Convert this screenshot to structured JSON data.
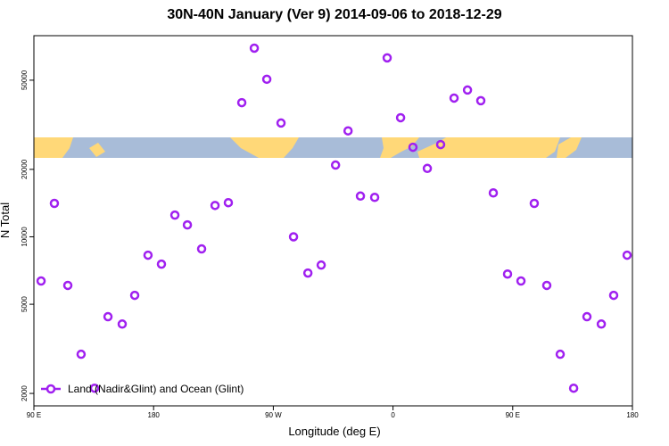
{
  "chart_data": {
    "type": "scatter",
    "title": "30N-40N January (Ver 9)   2014-09-06 to 2018-12-29",
    "x_label": "Longitude (deg E)",
    "y_label": "N Total",
    "log_y": true,
    "xlim": [
      90,
      540
    ],
    "ylim": [
      1760,
      79000
    ],
    "xticks": [
      {
        "value": 90,
        "label": "90 E"
      },
      180,
      {
        "value": 270,
        "label": "90 W"
      },
      {
        "value": 360,
        "label": "0"
      },
      {
        "value": 450,
        "label": "90 E"
      },
      {
        "value": 540,
        "label": "180"
      }
    ],
    "yticks": [
      2000,
      5000,
      10000,
      20000,
      50000
    ],
    "legend_position": "bottom-left",
    "series": [
      {
        "name": "Land (Nadir&Glint) and Ocean (Glint)",
        "color": "#a020f0",
        "x": [
          95.4,
          105.4,
          115.5,
          125.5,
          135.6,
          145.7,
          156.4,
          165.8,
          175.8,
          185.9,
          196.0,
          205.4,
          216.1,
          226.2,
          236.2,
          246.3,
          255.7,
          265.1,
          275.8,
          285.2,
          296.0,
          306.0,
          316.8,
          326.2,
          335.5,
          346.2,
          355.6,
          365.7,
          375.0,
          385.8,
          395.8,
          405.9,
          416.0,
          426.0,
          435.4,
          446.1,
          456.2,
          466.2,
          475.6,
          485.7,
          495.8,
          505.8,
          516.6,
          525.9,
          536.0
        ],
        "values": [
          6350,
          14100,
          6070,
          2990,
          2110,
          4400,
          4080,
          5480,
          8280,
          7550,
          12500,
          11300,
          8830,
          13800,
          14200,
          39700,
          69500,
          50500,
          32200,
          10000,
          6890,
          7480,
          20900,
          29700,
          15200,
          15000,
          62900,
          34000,
          25100,
          20200,
          25800,
          41600,
          45200,
          40500,
          15700,
          6820,
          6350,
          14100,
          6070,
          2990,
          2110,
          4400,
          4080,
          5480,
          8280
        ]
      }
    ]
  }
}
